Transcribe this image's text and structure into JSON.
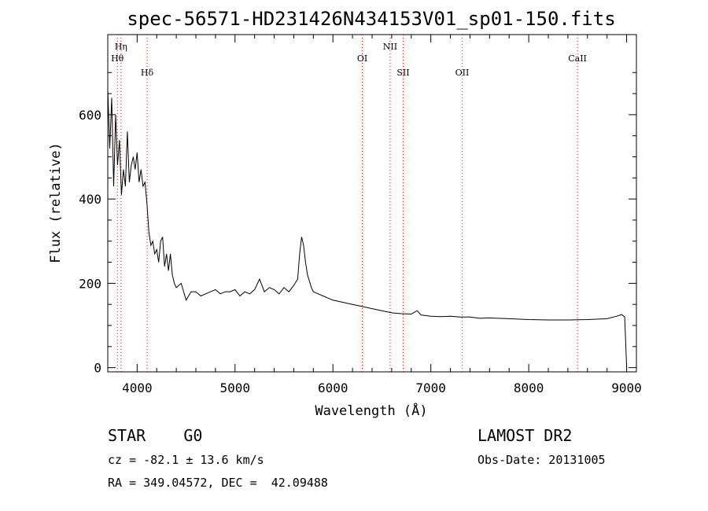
{
  "chart_data": {
    "type": "line",
    "title": "spec-56571-HD231426N434153V01_sp01-150.fits",
    "xlabel": "Wavelength (Å)",
    "ylabel": "Flux (relative)",
    "xlim": [
      3700,
      9100
    ],
    "ylim": [
      -10,
      790
    ],
    "xticks": [
      4000,
      5000,
      6000,
      7000,
      8000,
      9000
    ],
    "yticks": [
      0,
      200,
      400,
      600
    ],
    "line_color": "#000000",
    "marker_color": "#ff0000",
    "series": [
      {
        "x": [
          3700,
          3720,
          3740,
          3760,
          3780,
          3800,
          3820,
          3840,
          3860,
          3880,
          3900,
          3920,
          3940,
          3960,
          3980,
          4000,
          4020,
          4040,
          4060,
          4080,
          4100,
          4120,
          4140,
          4160,
          4180,
          4200,
          4220,
          4240,
          4260,
          4280,
          4300,
          4320,
          4340,
          4360,
          4380,
          4400,
          4450,
          4500,
          4550,
          4600,
          4650,
          4700,
          4750,
          4800,
          4850,
          4900,
          4950,
          5000,
          5050,
          5100,
          5150,
          5200,
          5250,
          5300,
          5350,
          5400,
          5450,
          5500,
          5550,
          5600,
          5640,
          5660,
          5680,
          5700,
          5720,
          5740,
          5760,
          5780,
          5800,
          5850,
          5900,
          5950,
          6000,
          6100,
          6200,
          6300,
          6400,
          6500,
          6600,
          6700,
          6800,
          6860,
          6900,
          7000,
          7100,
          7200,
          7300,
          7400,
          7500,
          7600,
          7800,
          8000,
          8200,
          8400,
          8600,
          8800,
          8900,
          8950,
          8980,
          9000
        ],
        "y": [
          660,
          520,
          640,
          430,
          600,
          480,
          540,
          410,
          470,
          430,
          560,
          440,
          480,
          500,
          470,
          510,
          440,
          470,
          430,
          440,
          390,
          320,
          290,
          300,
          270,
          280,
          250,
          300,
          310,
          240,
          270,
          230,
          270,
          220,
          200,
          190,
          200,
          160,
          180,
          180,
          170,
          175,
          180,
          185,
          175,
          180,
          180,
          185,
          170,
          180,
          175,
          185,
          210,
          180,
          190,
          185,
          175,
          190,
          180,
          195,
          210,
          270,
          310,
          290,
          250,
          220,
          205,
          190,
          180,
          175,
          170,
          165,
          160,
          155,
          150,
          145,
          140,
          135,
          130,
          128,
          127,
          135,
          125,
          122,
          121,
          122,
          120,
          120,
          117,
          118,
          116,
          114,
          113,
          113,
          114,
          116,
          122,
          126,
          120,
          0
        ]
      }
    ],
    "lines": [
      {
        "label": "Hη",
        "x": 3835
      },
      {
        "label": "Hθ",
        "x": 3798
      },
      {
        "label": "Hδ",
        "x": 4102
      },
      {
        "label": "OI",
        "x": 6300
      },
      {
        "label": "NII",
        "x": 6584
      },
      {
        "label": "SII",
        "x": 6717
      },
      {
        "label": "OII",
        "x": 7320
      },
      {
        "label": "CaII",
        "x": 8498
      }
    ]
  },
  "info": {
    "object": "STAR    G0",
    "survey": "LAMOST DR2",
    "cz": "cz = -82.1 ± 13.6 km/s",
    "obs_date": "Obs-Date: 20131005",
    "radec": "RA = 349.04572, DEC =  42.09488"
  }
}
